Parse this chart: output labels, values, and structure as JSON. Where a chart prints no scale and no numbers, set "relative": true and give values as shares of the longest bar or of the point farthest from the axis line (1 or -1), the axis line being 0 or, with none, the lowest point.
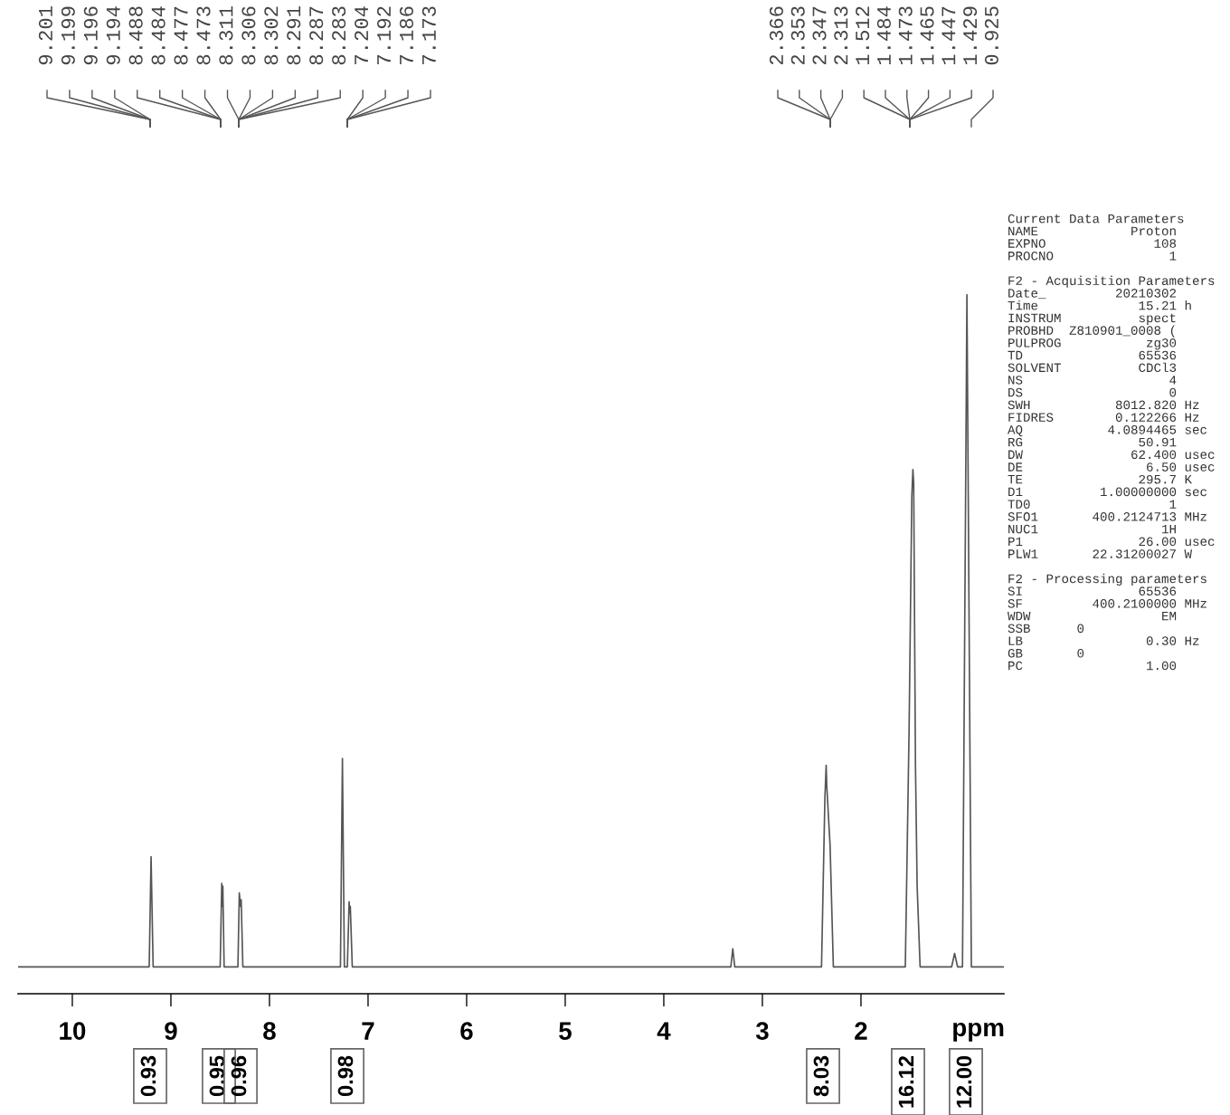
{
  "chart_data": {
    "type": "line",
    "relative": true,
    "xlim": [
      10.55,
      0.55
    ],
    "xticks": [
      10,
      9,
      8,
      7,
      6,
      5,
      4,
      3,
      2
    ],
    "xlabel": "ppm",
    "tick_labels": "x",
    "series": [
      {
        "color": "#555555",
        "x": [
          10.55,
          9.22,
          9.201,
          9.18,
          8.5,
          8.484,
          8.478,
          8.473,
          8.46,
          8.32,
          8.306,
          8.295,
          8.287,
          8.27,
          7.28,
          7.26,
          7.24,
          7.21,
          7.192,
          7.186,
          7.18,
          7.16,
          3.32,
          3.3,
          3.28,
          2.4,
          2.366,
          2.353,
          2.347,
          2.313,
          2.28,
          1.55,
          1.512,
          1.484,
          1.473,
          1.465,
          1.447,
          1.43,
          1.4,
          1.08,
          1.05,
          1.02,
          0.97,
          0.925,
          0.88,
          0.55
        ],
        "values": [
          0,
          0,
          0.164,
          0,
          0,
          0.124,
          0.09,
          0.12,
          0,
          0,
          0.11,
          0.09,
          0.1,
          0,
          0,
          0.31,
          0,
          0,
          0.097,
          0.08,
          0.09,
          0,
          0,
          0.027,
          0,
          0,
          0.25,
          0.3,
          0.27,
          0.18,
          0,
          0,
          0.35,
          0.7,
          0.74,
          0.72,
          0.3,
          0.12,
          0,
          0,
          0.02,
          0,
          0,
          1.0,
          0,
          0
        ]
      }
    ],
    "annotations": [
      "Current Data Parameters\nNAME            Proton\nEXPNO              108\nPROCNO               1",
      "F2 - Acquisition Parameters\nDate_         20210302\nTime             15.21 h\nINSTRUM          spect\nPROBHD  Z810901_0008 (\nPULPROG           zg30\nTD               65536\nSOLVENT          CDCl3\nNS                   4\nDS                   0\nSWH           8012.820 Hz\nFIDRES        0.122266 Hz\nAQ           4.0894465 sec\nRG               50.91\nDW              62.400 usec\nDE                6.50 usec\nTE               295.7 K\nD1          1.00000000 sec\nTD0                  1\nSFO1       400.2124713 MHz\nNUC1                1H\nP1               26.00 usec\nPLW1       22.31200027 W",
      "F2 - Processing parameters\nSI               65536\nSF         400.2100000 MHz\nWDW                 EM\nSSB      0\nLB                0.30 Hz\nGB       0\nPC                1.00",
      "9.201",
      "9.199",
      "9.196",
      "9.194",
      "8.488",
      "8.484",
      "8.477",
      "8.473",
      "8.311",
      "8.306",
      "8.302",
      "8.291",
      "8.287",
      "8.283",
      "7.204",
      "7.192",
      "7.186",
      "7.173",
      "2.366",
      "2.353",
      "2.347",
      "2.313",
      "1.512",
      "1.484",
      "1.473",
      "1.465",
      "1.447",
      "1.429",
      "0.925",
      "0.93",
      "0.95",
      "0.96",
      "0.98",
      "8.03",
      "16.12",
      "12.00"
    ]
  }
}
